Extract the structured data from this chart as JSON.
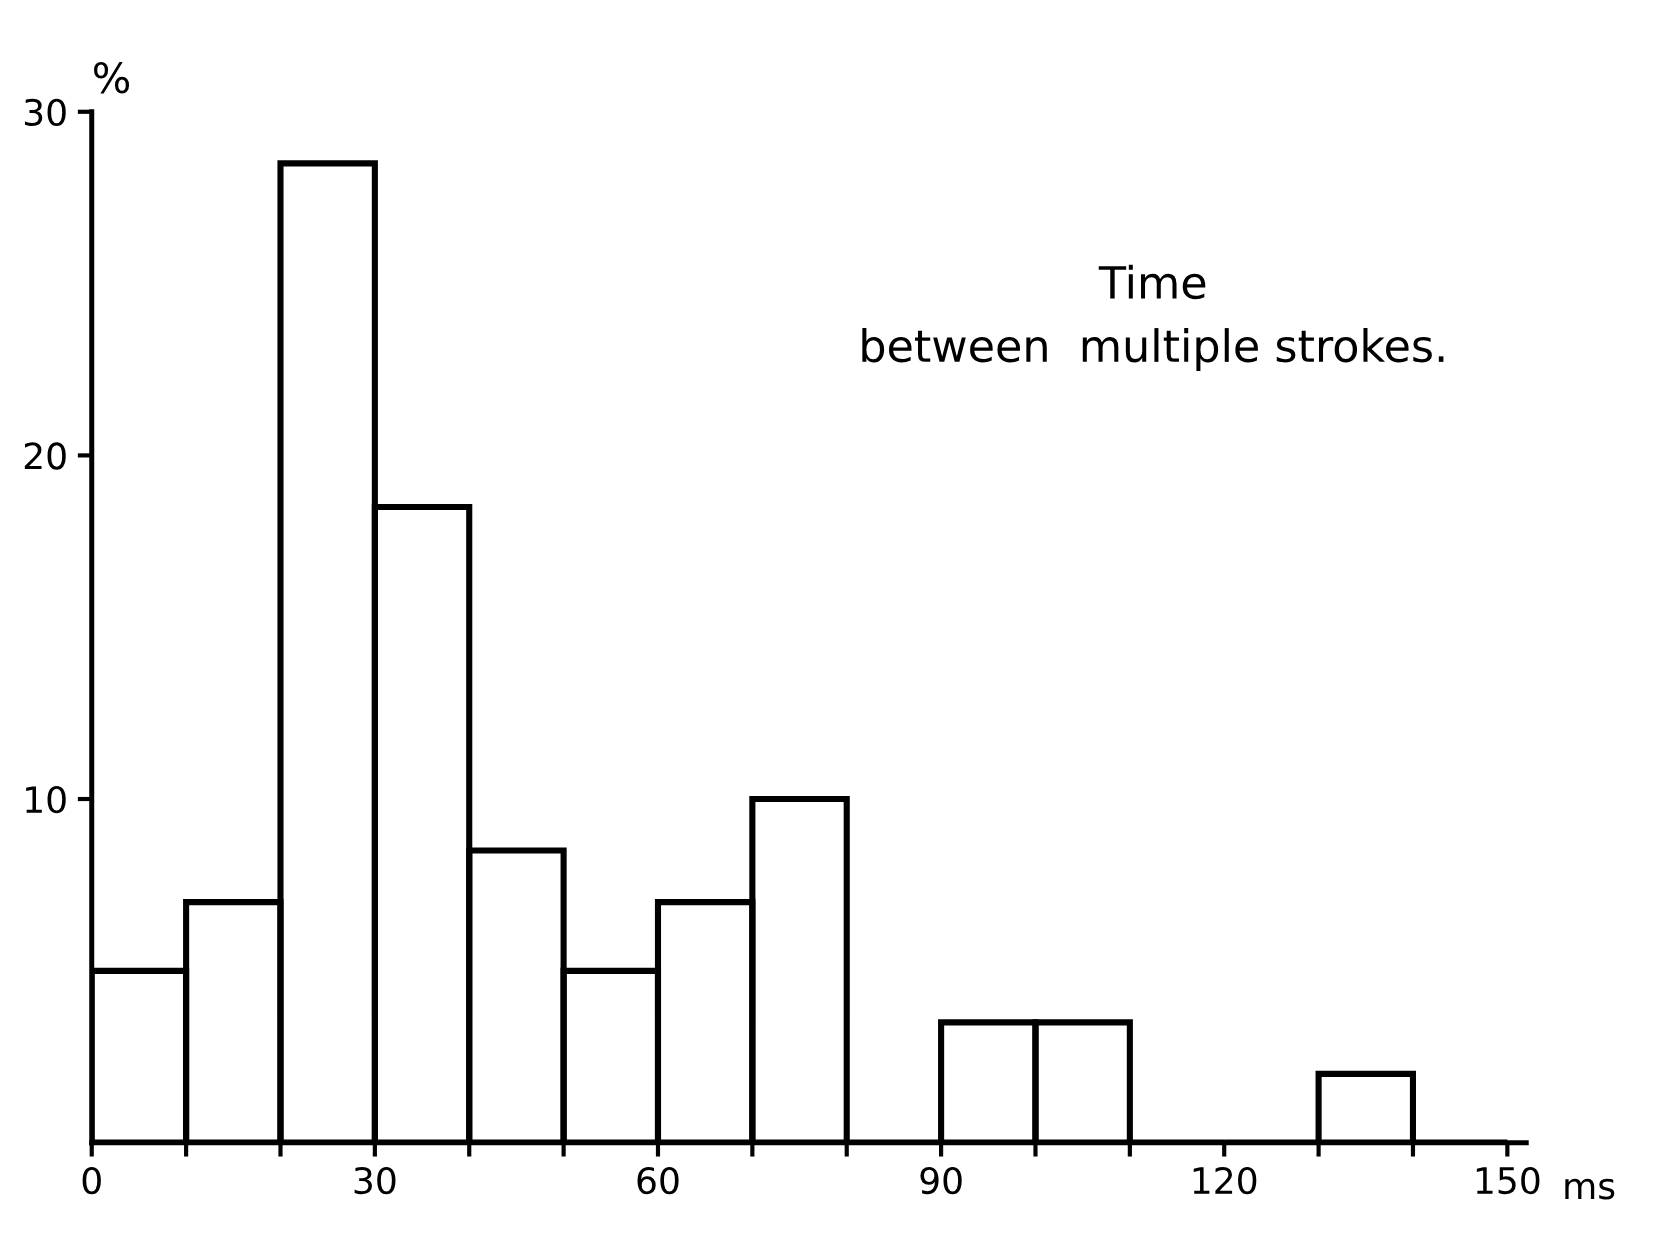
{
  "chart_data": {
    "type": "histogram",
    "bins": [
      0,
      10,
      20,
      30,
      40,
      50,
      60,
      70,
      80,
      90,
      100,
      110,
      120,
      130,
      140,
      150
    ],
    "values": [
      5,
      7,
      28.5,
      18.5,
      8.5,
      5,
      7,
      10,
      0,
      3.5,
      3.5,
      0,
      0,
      2,
      0
    ],
    "color": "#000000",
    "ylabel": "%",
    "xlabel": "ms",
    "annotations": [
      "Time\nbetween  multiple strokes."
    ],
    "xlim": [
      0,
      152
    ],
    "ylim": [
      0,
      30
    ],
    "xticks": [
      0,
      {
        "value": 10,
        "label": null
      },
      {
        "value": 20,
        "label": null
      },
      30,
      {
        "value": 40,
        "label": null
      },
      {
        "value": 50,
        "label": null
      },
      60,
      {
        "value": 70,
        "label": null
      },
      {
        "value": 80,
        "label": null
      },
      90,
      {
        "value": 100,
        "label": null
      },
      {
        "value": 110,
        "label": null
      },
      120,
      {
        "value": 130,
        "label": null
      },
      {
        "value": 140,
        "label": null
      },
      150
    ],
    "yticks": [
      10,
      20,
      30
    ],
    "grid": false
  }
}
